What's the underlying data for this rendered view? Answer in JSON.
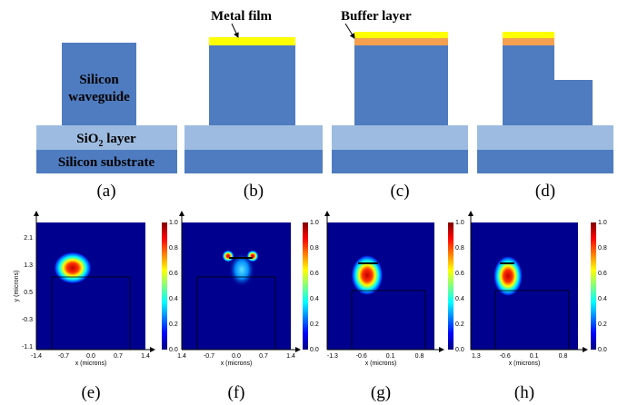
{
  "annotations": {
    "metal_film": "Metal film",
    "buffer_layer": "Buffer layer"
  },
  "layers": {
    "waveguide_line1": "Silicon",
    "waveguide_line2": "waveguide",
    "sio2_main": "SiO",
    "sio2_sub": "2",
    "sio2_rest": " layer",
    "substrate": "Silicon substrate"
  },
  "top_panels": [
    {
      "label": "(a)"
    },
    {
      "label": "(b)"
    },
    {
      "label": "(c)"
    },
    {
      "label": "(d)"
    }
  ],
  "field_plots": [
    {
      "label": "(e)",
      "x_label": "x (microns)",
      "y_label": "y (microns)",
      "x_ticks": [
        "-1.4",
        "-0.7",
        "0.0",
        "0.7",
        "1.4"
      ],
      "y_ticks": [
        "2.1",
        "1.3",
        "0.5",
        "-0.3",
        "-1.1"
      ]
    },
    {
      "label": "(f)",
      "x_label": "x (microns)",
      "x_ticks": [
        "1.4",
        "-0.7",
        "0.0",
        "0.7",
        "1.4"
      ]
    },
    {
      "label": "(g)",
      "x_label": "x (microns)",
      "x_ticks": [
        "-1.3",
        "-0.6",
        "0.1",
        "0.8"
      ]
    },
    {
      "label": "(h)",
      "x_label": "x (microns)",
      "x_ticks": [
        "1.3",
        "-0.6",
        "0.1",
        "0.8"
      ]
    }
  ],
  "colorbar_ticks": [
    "1.0",
    "0.8",
    "0.6",
    "0.4",
    "0.2",
    "0.0"
  ]
}
